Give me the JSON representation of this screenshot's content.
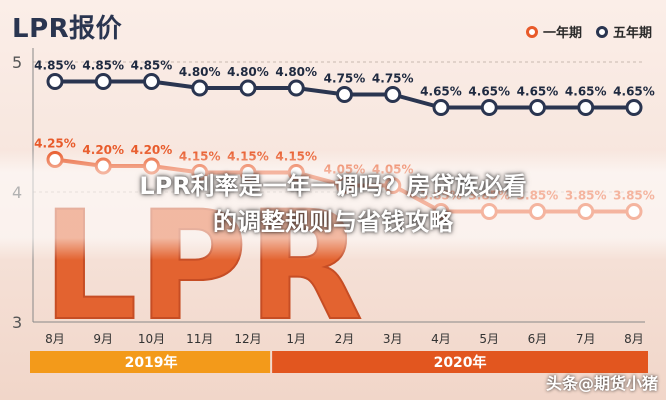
{
  "header": {
    "title": "LPR报价"
  },
  "legend": {
    "one_year": "一年期",
    "five_year": "五年期"
  },
  "colors": {
    "one_year": "#e85a2a",
    "five_year": "#2a3550",
    "band_2019": "#f39a1a",
    "band_2020": "#e2561f"
  },
  "chart_data": {
    "type": "line",
    "title": "LPR报价",
    "categories": [
      "8月",
      "9月",
      "10月",
      "11月",
      "12月",
      "1月",
      "2月",
      "3月",
      "4月",
      "5月",
      "6月",
      "7月",
      "8月"
    ],
    "ylim": [
      3,
      5
    ],
    "yticks": [
      "3",
      "4",
      "5"
    ],
    "series": [
      {
        "name": "一年期",
        "values": [
          4.25,
          4.2,
          4.2,
          4.15,
          4.15,
          4.15,
          4.05,
          4.05,
          3.85,
          3.85,
          3.85,
          3.85,
          3.85
        ],
        "labels": [
          "4.25%",
          "4.20%",
          "4.20%",
          "4.15%",
          "4.15%",
          "4.15%",
          "4.05%",
          "4.05%",
          "3.85%",
          "3.85%",
          "3.85%",
          "3.85%",
          "3.85%"
        ]
      },
      {
        "name": "五年期",
        "values": [
          4.85,
          4.85,
          4.85,
          4.8,
          4.8,
          4.8,
          4.75,
          4.75,
          4.65,
          4.65,
          4.65,
          4.65,
          4.65
        ],
        "labels": [
          "4.85%",
          "4.85%",
          "4.85%",
          "4.80%",
          "4.80%",
          "4.80%",
          "4.75%",
          "4.75%",
          "4.65%",
          "4.65%",
          "4.65%",
          "4.65%",
          "4.65%"
        ]
      }
    ],
    "year_bands": [
      {
        "label": "2019年",
        "months": 5
      },
      {
        "label": "2020年",
        "months": 8
      }
    ],
    "grid": true
  },
  "overlay": {
    "line1": "LPR利率是一年一调吗？房贷族必看",
    "line2": "的调整规则与省钱攻略",
    "big_text": "LPR"
  },
  "watermark": "头条@期货小猪"
}
